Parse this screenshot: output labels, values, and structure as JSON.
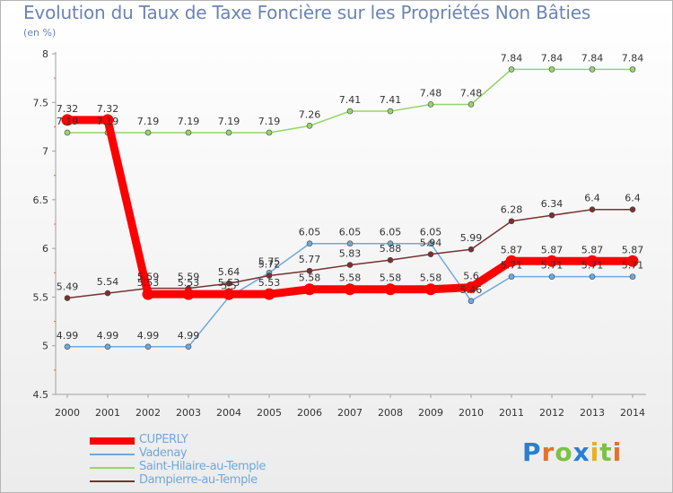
{
  "chart_data": {
    "type": "line",
    "title": "Evolution du Taux de Taxe Foncière sur les Propriétés Non Bâties",
    "ylabel": "(en %)",
    "xlabel": "",
    "ylim": [
      4.5,
      8
    ],
    "yticks": [
      "4.5",
      "5",
      "5.5",
      "6",
      "6.5",
      "7",
      "7.5",
      "8"
    ],
    "categories": [
      "2000",
      "2001",
      "2002",
      "2003",
      "2004",
      "2005",
      "2006",
      "2007",
      "2008",
      "2009",
      "2010",
      "2011",
      "2012",
      "2013",
      "2014"
    ],
    "series": [
      {
        "name": "CUPERLY",
        "color": "#ff0000",
        "values": [
          7.32,
          7.32,
          5.53,
          5.53,
          5.53,
          5.53,
          5.58,
          5.58,
          5.58,
          5.58,
          5.6,
          5.87,
          5.87,
          5.87,
          5.87
        ],
        "labels": [
          "7.32",
          "7.32",
          "5.53",
          "5.53",
          "5.53",
          "5.53",
          "5.58",
          "5.58",
          "5.58",
          "5.58",
          "5.6",
          "5.87",
          "5.87",
          "5.87",
          "5.87"
        ]
      },
      {
        "name": "Vadenay",
        "color": "#6fa8dc",
        "values": [
          4.99,
          4.99,
          4.99,
          4.99,
          5.5,
          5.75,
          6.05,
          6.05,
          6.05,
          6.05,
          5.46,
          5.71,
          5.71,
          5.71,
          5.71
        ],
        "labels": [
          "4.99",
          "4.99",
          "4.99",
          "4.99",
          "5.5",
          "5.75",
          "6.05",
          "6.05",
          "6.05",
          "6.05",
          "5.46",
          "5.71",
          "5.71",
          "5.71",
          "5.71"
        ]
      },
      {
        "name": "Saint-Hilaire-au-Temple",
        "color": "#93d66b",
        "values": [
          7.19,
          7.19,
          7.19,
          7.19,
          7.19,
          7.19,
          7.26,
          7.41,
          7.41,
          7.48,
          7.48,
          7.84,
          7.84,
          7.84,
          7.84
        ],
        "labels": [
          "7.19",
          "7.19",
          "7.19",
          "7.19",
          "7.19",
          "7.19",
          "7.26",
          "7.41",
          "7.41",
          "7.48",
          "7.48",
          "7.84",
          "7.84",
          "7.84",
          "7.84"
        ]
      },
      {
        "name": "Dampierre-au-Temple",
        "color": "#7b3030",
        "values": [
          5.49,
          5.54,
          5.59,
          5.59,
          5.64,
          5.72,
          5.77,
          5.83,
          5.88,
          5.94,
          5.99,
          6.28,
          6.34,
          6.4,
          6.4
        ],
        "labels": [
          "5.49",
          "5.54",
          "5.59",
          "5.59",
          "5.64",
          "5.72",
          "5.77",
          "5.83",
          "5.88",
          "5.94",
          "5.99",
          "6.28",
          "6.34",
          "6.4",
          "6.4"
        ]
      }
    ]
  },
  "logo": {
    "text": "Proxiti",
    "letters": [
      "P",
      "r",
      "o",
      "x",
      "i",
      "t",
      "i"
    ]
  },
  "colors": {
    "title": "#6b84b5",
    "axis": "#a0a0a0",
    "label": "#333333",
    "logo_letters": [
      "#2a7fd4",
      "#e8702a",
      "#7cc242",
      "#2a7fd4",
      "#e8b020",
      "#7cc242",
      "#e8702a"
    ]
  }
}
